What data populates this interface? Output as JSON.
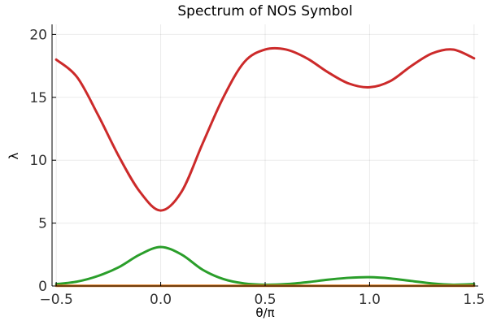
{
  "chart_data": {
    "type": "line",
    "title": "Spectrum of NOS Symbol",
    "xlabel": "θ/π",
    "ylabel": "λ",
    "xlim": [
      -0.52,
      1.52
    ],
    "ylim": [
      0,
      20.8
    ],
    "xticks": [
      -0.5,
      0.0,
      0.5,
      1.0,
      1.5
    ],
    "xtick_labels": [
      "−0.5",
      "0.0",
      "0.5",
      "1.0",
      "1.5"
    ],
    "yticks": [
      0,
      5,
      10,
      15,
      20
    ],
    "ytick_labels": [
      "0",
      "5",
      "10",
      "15",
      "20"
    ],
    "grid": true,
    "legend": "none",
    "series": [
      {
        "color": "#cc2a2a",
        "x": [
          -0.5,
          -0.4,
          -0.3,
          -0.2,
          -0.1,
          0.0,
          0.1,
          0.2,
          0.3,
          0.4,
          0.5,
          0.6,
          0.7,
          0.8,
          0.9,
          1.0,
          1.1,
          1.2,
          1.3,
          1.4,
          1.5
        ],
        "y": [
          18.0,
          16.6,
          13.6,
          10.3,
          7.5,
          6.0,
          7.5,
          11.3,
          15.0,
          17.8,
          18.8,
          18.8,
          18.1,
          17.0,
          16.1,
          15.8,
          16.3,
          17.5,
          18.5,
          18.8,
          18.1
        ]
      },
      {
        "color": "#2a9e2a",
        "x": [
          -0.5,
          -0.4,
          -0.3,
          -0.2,
          -0.1,
          0.0,
          0.1,
          0.2,
          0.3,
          0.4,
          0.5,
          0.6,
          0.7,
          0.8,
          0.9,
          1.0,
          1.1,
          1.2,
          1.3,
          1.4,
          1.5
        ],
        "y": [
          0.15,
          0.35,
          0.8,
          1.5,
          2.5,
          3.1,
          2.5,
          1.3,
          0.55,
          0.2,
          0.1,
          0.15,
          0.3,
          0.5,
          0.65,
          0.7,
          0.6,
          0.4,
          0.2,
          0.1,
          0.15
        ]
      },
      {
        "color": "#e37b1c",
        "x": [
          -0.5,
          1.5
        ],
        "y": [
          0.02,
          0.02
        ]
      }
    ]
  }
}
